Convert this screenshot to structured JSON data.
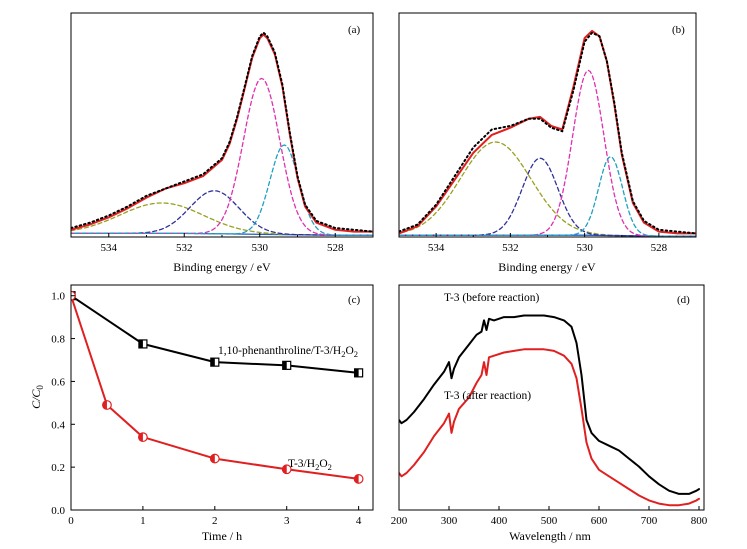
{
  "chart_data": [
    {
      "panel": "(a)",
      "type": "line",
      "xlabel": "Binding energy / eV",
      "ylabel": "",
      "xlim": [
        535,
        527
      ],
      "ylim": [
        0,
        1.25
      ],
      "x_ticks": [
        534,
        532,
        530,
        528
      ],
      "x_reversed": true,
      "series": [
        {
          "name": "",
          "color": "#e02020",
          "style": "solid",
          "kind": "envelope",
          "x": [
            535,
            534.5,
            534,
            533.5,
            533,
            532.5,
            532,
            531.5,
            531,
            530.8,
            530.6,
            530.4,
            530.2,
            530,
            529.9,
            529.8,
            529.6,
            529.4,
            529.2,
            529,
            528.8,
            528.5,
            528,
            527.5,
            527
          ],
          "y": [
            0.04,
            0.07,
            0.11,
            0.16,
            0.22,
            0.27,
            0.3,
            0.34,
            0.43,
            0.52,
            0.66,
            0.83,
            1.0,
            1.11,
            1.13,
            1.11,
            1.02,
            0.84,
            0.57,
            0.33,
            0.17,
            0.08,
            0.04,
            0.03,
            0.03
          ]
        },
        {
          "name": "",
          "color": "#000000",
          "style": "dotted",
          "kind": "experimental",
          "x": [
            535,
            534.5,
            534,
            533.5,
            533,
            532.5,
            532,
            531.5,
            531,
            530.8,
            530.6,
            530.4,
            530.2,
            530,
            529.9,
            529.8,
            529.6,
            529.4,
            529.2,
            529,
            528.8,
            528.5,
            528,
            527.5,
            527
          ],
          "y": [
            0.05,
            0.08,
            0.12,
            0.17,
            0.23,
            0.27,
            0.31,
            0.35,
            0.44,
            0.53,
            0.67,
            0.84,
            1.01,
            1.12,
            1.14,
            1.12,
            1.03,
            0.85,
            0.58,
            0.34,
            0.18,
            0.09,
            0.05,
            0.04,
            0.03
          ]
        },
        {
          "name": "",
          "color": "#99a020",
          "style": "dashed",
          "kind": "component",
          "center": 532.6,
          "height": 0.17,
          "width": 1.1
        },
        {
          "name": "",
          "color": "#30309a",
          "style": "dashed",
          "kind": "component",
          "center": 531.2,
          "height": 0.24,
          "width": 0.65
        },
        {
          "name": "",
          "color": "#e030b0",
          "style": "dashed",
          "kind": "component",
          "center": 529.95,
          "height": 0.87,
          "width": 0.48
        },
        {
          "name": "",
          "color": "#20a0c0",
          "style": "dashed",
          "kind": "component",
          "center": 529.35,
          "height": 0.5,
          "width": 0.38
        },
        {
          "name": "",
          "color": "#2060c0",
          "style": "solid",
          "kind": "background",
          "x": [
            535,
            532,
            530,
            528,
            527
          ],
          "y": [
            0.02,
            0.02,
            0.015,
            0.01,
            0.01
          ]
        }
      ]
    },
    {
      "panel": "(b)",
      "type": "line",
      "xlabel": "Binding energy / eV",
      "ylabel": "",
      "xlim": [
        535,
        527
      ],
      "ylim": [
        0,
        1.25
      ],
      "x_ticks": [
        534,
        532,
        530,
        528
      ],
      "x_reversed": true,
      "series": [
        {
          "name": "",
          "color": "#e02020",
          "style": "solid",
          "kind": "envelope",
          "x": [
            535,
            534.5,
            534,
            533.5,
            533,
            532.5,
            532,
            531.5,
            531.2,
            530.9,
            530.6,
            530.3,
            530,
            529.8,
            529.6,
            529.4,
            529.2,
            529,
            528.7,
            528.4,
            528,
            527.5,
            527
          ],
          "y": [
            0.02,
            0.06,
            0.17,
            0.32,
            0.47,
            0.57,
            0.61,
            0.66,
            0.67,
            0.62,
            0.6,
            0.84,
            1.11,
            1.15,
            1.12,
            0.98,
            0.74,
            0.46,
            0.19,
            0.08,
            0.03,
            0.02,
            0.02
          ]
        },
        {
          "name": "",
          "color": "#000000",
          "style": "dotted",
          "kind": "experimental",
          "x": [
            535,
            534.5,
            534,
            533.5,
            533,
            532.5,
            532,
            531.5,
            531.2,
            530.9,
            530.6,
            530.3,
            530,
            529.8,
            529.6,
            529.4,
            529.2,
            529,
            528.7,
            528.4,
            528,
            527.5,
            527
          ],
          "y": [
            0.03,
            0.07,
            0.18,
            0.34,
            0.5,
            0.6,
            0.62,
            0.66,
            0.66,
            0.61,
            0.59,
            0.82,
            1.09,
            1.14,
            1.12,
            0.98,
            0.75,
            0.47,
            0.2,
            0.09,
            0.04,
            0.03,
            0.02
          ]
        },
        {
          "name": "",
          "color": "#99a020",
          "style": "dashed",
          "kind": "component",
          "center": 532.4,
          "height": 0.52,
          "width": 0.95
        },
        {
          "name": "",
          "color": "#30309a",
          "style": "dashed",
          "kind": "component",
          "center": 531.2,
          "height": 0.43,
          "width": 0.48
        },
        {
          "name": "",
          "color": "#e030b0",
          "style": "dashed",
          "kind": "component",
          "center": 529.9,
          "height": 0.92,
          "width": 0.42
        },
        {
          "name": "",
          "color": "#20a0c0",
          "style": "dashed",
          "kind": "component",
          "center": 529.3,
          "height": 0.44,
          "width": 0.32
        },
        {
          "name": "",
          "color": "#2060c0",
          "style": "solid",
          "kind": "background",
          "x": [
            535,
            532,
            530,
            528,
            527
          ],
          "y": [
            0.01,
            0.01,
            0.01,
            0.005,
            0.005
          ]
        }
      ]
    },
    {
      "panel": "(c)",
      "type": "line",
      "xlabel": "Time / h",
      "ylabel": "C/C0",
      "xlim": [
        0,
        4.2
      ],
      "ylim": [
        0,
        1.05
      ],
      "x_ticks": [
        0,
        1,
        2,
        3,
        4
      ],
      "y_ticks": [
        0.0,
        0.2,
        0.4,
        0.6,
        0.8,
        1.0
      ],
      "series": [
        {
          "name": "1,10-phenanthroline/T-3/H2O2",
          "color": "#000000",
          "marker": "square-half",
          "x": [
            0,
            1,
            2,
            3,
            4
          ],
          "y": [
            1.0,
            0.775,
            0.69,
            0.675,
            0.64
          ]
        },
        {
          "name": "T-3/H2O2",
          "color": "#e02020",
          "marker": "circle-half",
          "x": [
            0,
            0.5,
            1,
            2,
            3,
            4
          ],
          "y": [
            1.0,
            0.49,
            0.34,
            0.24,
            0.19,
            0.145
          ]
        }
      ]
    },
    {
      "panel": "(d)",
      "type": "line",
      "xlabel": "Wavelength / nm",
      "ylabel": "",
      "xlim": [
        200,
        810
      ],
      "ylim": [
        0,
        1.4
      ],
      "x_ticks": [
        200,
        300,
        400,
        500,
        600,
        700,
        800
      ],
      "series": [
        {
          "name": "T-3 (before reaction)",
          "color": "#000000",
          "x": [
            200,
            205,
            215,
            230,
            250,
            270,
            290,
            300,
            305,
            310,
            320,
            340,
            355,
            365,
            370,
            375,
            380,
            390,
            410,
            430,
            450,
            470,
            490,
            510,
            530,
            545,
            555,
            565,
            575,
            585,
            600,
            620,
            640,
            660,
            680,
            700,
            720,
            740,
            760,
            780,
            795,
            800
          ],
          "y": [
            0.56,
            0.54,
            0.56,
            0.61,
            0.69,
            0.78,
            0.86,
            0.92,
            0.82,
            0.88,
            0.95,
            1.03,
            1.09,
            1.11,
            1.18,
            1.12,
            1.19,
            1.18,
            1.2,
            1.2,
            1.21,
            1.21,
            1.21,
            1.2,
            1.18,
            1.14,
            1.04,
            0.84,
            0.56,
            0.48,
            0.43,
            0.4,
            0.37,
            0.32,
            0.27,
            0.21,
            0.16,
            0.12,
            0.1,
            0.1,
            0.12,
            0.13
          ]
        },
        {
          "name": "T-3 (after reaction)",
          "color": "#e02020",
          "x": [
            200,
            205,
            215,
            230,
            250,
            270,
            290,
            300,
            305,
            310,
            320,
            340,
            355,
            365,
            370,
            375,
            380,
            390,
            410,
            430,
            450,
            470,
            490,
            510,
            530,
            545,
            555,
            565,
            575,
            585,
            600,
            620,
            640,
            660,
            680,
            700,
            720,
            740,
            760,
            780,
            795,
            800
          ],
          "y": [
            0.23,
            0.21,
            0.23,
            0.28,
            0.36,
            0.46,
            0.54,
            0.6,
            0.48,
            0.55,
            0.63,
            0.7,
            0.79,
            0.84,
            0.92,
            0.84,
            0.95,
            0.96,
            0.98,
            0.99,
            1.0,
            1.0,
            1.0,
            0.99,
            0.96,
            0.91,
            0.82,
            0.63,
            0.42,
            0.32,
            0.25,
            0.21,
            0.17,
            0.13,
            0.09,
            0.06,
            0.04,
            0.03,
            0.03,
            0.04,
            0.06,
            0.07
          ]
        }
      ]
    }
  ],
  "panel_c_labels": {
    "series_a_prefix": "1,10-phenanthroline/T-3/H",
    "series_b_prefix": "T-3/H",
    "sub_two": "2",
    "letter_o": "O",
    "ylabel_main": "C/C",
    "ylabel_sub": "0"
  }
}
